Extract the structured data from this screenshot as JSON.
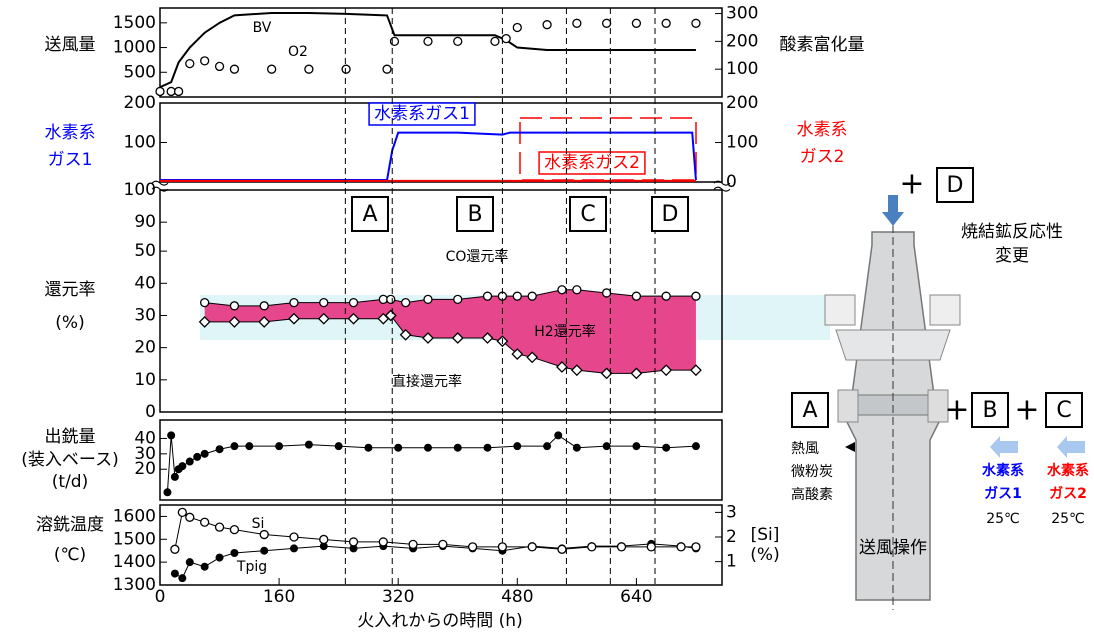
{
  "chart_data": [
    {
      "type": "line",
      "xlim": [
        0,
        755
      ],
      "x": [
        0,
        15,
        25,
        40,
        60,
        80,
        100,
        150,
        200,
        250,
        305,
        315,
        360,
        400,
        450,
        465,
        480,
        520,
        560,
        600,
        640,
        680,
        720
      ],
      "ylim": [
        0,
        1800
      ],
      "yticks": [
        500,
        1000,
        1500
      ],
      "y2lim": [
        0,
        320
      ],
      "y2ticks": [
        100,
        200,
        300
      ],
      "ylabel": [
        "送風量"
      ],
      "y2label": [
        "酸素富化量"
      ],
      "series": [
        {
          "name": "BV",
          "color": "#000000",
          "line": true,
          "values": [
            200,
            300,
            700,
            1000,
            1300,
            1500,
            1650,
            1700,
            1700,
            1680,
            1650,
            1250,
            1250,
            1250,
            1250,
            1150,
            1000,
            950,
            950,
            950,
            950,
            950,
            950
          ]
        },
        {
          "name": "O2",
          "color": "#000000",
          "axis": "y2",
          "marker": "circle",
          "values": [
            20,
            20,
            20,
            120,
            130,
            110,
            100,
            100,
            100,
            100,
            100,
            200,
            200,
            200,
            200,
            210,
            250,
            260,
            265,
            265,
            265,
            265,
            265
          ]
        }
      ]
    },
    {
      "type": "line",
      "xlim": [
        0,
        755
      ],
      "x": [
        0,
        305,
        312,
        320,
        400,
        460,
        470,
        480,
        560,
        640,
        700,
        715,
        720
      ],
      "ylim": [
        0,
        200
      ],
      "yticks": [
        100,
        200
      ],
      "y2lim": [
        0,
        200
      ],
      "y2ticks": [
        0,
        100,
        200
      ],
      "ylabel": [
        "水素系",
        "ガス1"
      ],
      "ylabel_color": "#0000ff",
      "y2label": [
        "水素系",
        "ガス2"
      ],
      "y2label_color": "#ff0000",
      "series": [
        {
          "name": "水素系ガス1",
          "color": "#0000ff",
          "line": true,
          "values": [
            5,
            5,
            80,
            125,
            125,
            120,
            125,
            125,
            125,
            125,
            125,
            125,
            5
          ]
        },
        {
          "name": "水素系ガス2",
          "color": "#ff0000",
          "line": true,
          "values": [
            3,
            3,
            3,
            3,
            3,
            3,
            3,
            3,
            3,
            3,
            3,
            3,
            3
          ]
        }
      ]
    },
    {
      "type": "line",
      "xlim": [
        0,
        755
      ],
      "x": [
        60,
        100,
        140,
        180,
        220,
        260,
        300,
        310,
        330,
        360,
        400,
        440,
        460,
        480,
        500,
        540,
        560,
        600,
        640,
        680,
        720
      ],
      "ylim": [
        0,
        100
      ],
      "yticks": [
        0,
        10,
        20,
        30,
        40,
        50,
        90,
        100
      ],
      "axis_break": [
        55,
        86
      ],
      "ylabel": [
        "還元率",
        "(%)"
      ],
      "series": [
        {
          "name": "CO還元率",
          "color": "#000000",
          "marker": "circle",
          "line": true,
          "values": [
            34,
            33,
            33,
            34,
            34,
            34,
            35,
            35,
            34,
            35,
            35,
            36,
            36,
            36,
            36,
            38,
            38,
            37,
            36,
            36,
            36
          ]
        },
        {
          "name": "直接還元率",
          "color": "#000000",
          "marker": "diamond",
          "line": true,
          "values": [
            28,
            28,
            28,
            29,
            29,
            29,
            29,
            30,
            24,
            23,
            23,
            23,
            22,
            18,
            17,
            14,
            13,
            12,
            12,
            13,
            13
          ]
        }
      ],
      "fill_between": {
        "name": "H2還元率",
        "color": "#e6468c"
      },
      "vlines": [
        249,
        312,
        460,
        546,
        605,
        665
      ],
      "periods": [
        "A",
        "B",
        "C",
        "D"
      ]
    },
    {
      "type": "scatter",
      "xlim": [
        0,
        755
      ],
      "x": [
        10,
        15,
        20,
        25,
        30,
        40,
        50,
        60,
        80,
        100,
        120,
        160,
        200,
        240,
        280,
        320,
        360,
        400,
        440,
        480,
        520,
        535,
        560,
        600,
        640,
        680,
        720
      ],
      "ylim": [
        0,
        52
      ],
      "yticks": [
        20,
        30,
        40
      ],
      "ylabel": [
        "出銑量",
        "(装入ベース)",
        "(t/d)"
      ],
      "series": [
        {
          "color": "#000000",
          "marker": "dot",
          "line": true,
          "values": [
            5,
            42,
            15,
            20,
            22,
            25,
            28,
            30,
            33,
            35,
            35,
            35,
            36,
            35,
            34,
            34,
            34,
            34,
            34,
            35,
            35,
            42,
            34,
            35,
            35,
            34,
            35
          ]
        }
      ]
    },
    {
      "type": "line",
      "xlim": [
        0,
        755
      ],
      "x": [
        20,
        30,
        40,
        60,
        80,
        100,
        140,
        180,
        220,
        260,
        300,
        340,
        380,
        420,
        460,
        500,
        540,
        580,
        620,
        660,
        700,
        720
      ],
      "ylim": [
        1300,
        1650
      ],
      "yticks": [
        1300,
        1400,
        1500,
        1600
      ],
      "y2lim": [
        0.05,
        3.3
      ],
      "y2ticks": [
        1,
        2,
        3
      ],
      "ylabel": [
        "溶銑温度",
        "(℃)"
      ],
      "y2label": [
        "[Si]",
        "(%)"
      ],
      "xticks": [
        0,
        160,
        320,
        480,
        640
      ],
      "xlabel": "火入れからの時間 (h)",
      "series": [
        {
          "name": "Tpig",
          "color": "#000000",
          "marker": "dot",
          "line": true,
          "values": [
            1350,
            1330,
            1400,
            1380,
            1420,
            1440,
            1450,
            1460,
            1470,
            1460,
            1470,
            1460,
            1470,
            1460,
            1450,
            1470,
            1460,
            1470,
            1470,
            1480,
            1470,
            1460
          ]
        },
        {
          "name": "Si",
          "color": "#000000",
          "axis": "y2",
          "marker": "circle",
          "line": true,
          "values": [
            1.5,
            3.0,
            2.8,
            2.6,
            2.4,
            2.3,
            2.1,
            2.0,
            1.9,
            1.8,
            1.8,
            1.7,
            1.7,
            1.6,
            1.6,
            1.6,
            1.5,
            1.6,
            1.6,
            1.6,
            1.6,
            1.6
          ]
        }
      ]
    }
  ],
  "diagram": {
    "top_plus": "+",
    "top_box": "D",
    "sinter_note": [
      "焼結鉱反応性",
      "変更"
    ],
    "tuyere_box": "A",
    "blast_items": [
      "熱風",
      "微粉炭",
      "高酸素"
    ],
    "plus": [
      "+",
      "+"
    ],
    "boxes": [
      "B",
      "C"
    ],
    "gas1": {
      "label": [
        "水素系",
        "ガス1"
      ],
      "temp": "25℃"
    },
    "gas2": {
      "label": [
        "水素系",
        "ガス2"
      ],
      "temp": "25℃"
    },
    "caption": "送風操作"
  }
}
